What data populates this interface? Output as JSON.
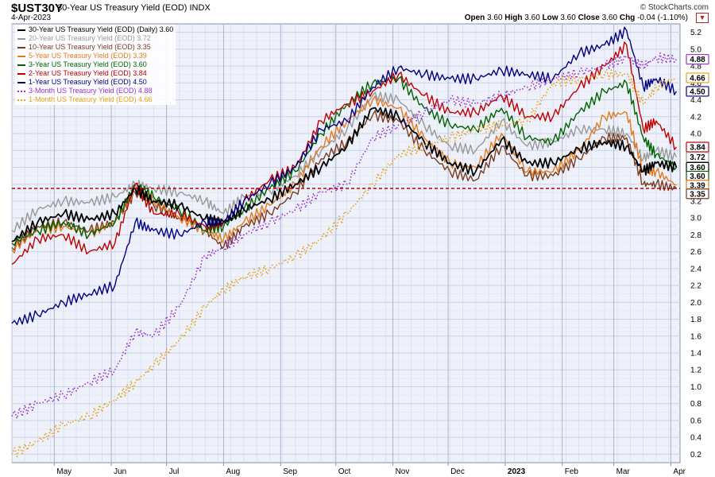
{
  "header": {
    "symbol": "$UST30Y",
    "description": "30-Year US Treasury Yield (EOD)",
    "exchange": "INDX",
    "date": "4-Apr-2023",
    "brand": "© StockCharts.com",
    "open_label": "Open",
    "open": "3.60",
    "high_label": "High",
    "high": "3.60",
    "low_label": "Low",
    "low": "3.60",
    "close_label": "Close",
    "close": "3.60",
    "chg_label": "Chg",
    "chg": "-0.04 (-1.10%)",
    "menu_icon": "chevron-down-icon"
  },
  "chart_data": {
    "type": "line",
    "grid": true,
    "ylim": [
      0.1,
      5.3
    ],
    "y_ticks": [
      0.2,
      0.4,
      0.6,
      0.8,
      1.0,
      1.2,
      1.4,
      1.6,
      1.8,
      2.0,
      2.2,
      2.4,
      2.6,
      2.8,
      3.0,
      3.2,
      3.4,
      3.6,
      3.8,
      4.0,
      4.2,
      4.4,
      4.6,
      4.8,
      5.0,
      5.2
    ],
    "x_range": [
      "2022-04-08",
      "2023-04-06"
    ],
    "x_ticks": [
      {
        "date": "2022-05-01",
        "label": "May"
      },
      {
        "date": "2022-06-01",
        "label": "Jun"
      },
      {
        "date": "2022-07-01",
        "label": "Jul"
      },
      {
        "date": "2022-08-01",
        "label": "Aug"
      },
      {
        "date": "2022-09-01",
        "label": "Sep"
      },
      {
        "date": "2022-10-01",
        "label": "Oct"
      },
      {
        "date": "2022-11-01",
        "label": "Nov"
      },
      {
        "date": "2022-12-01",
        "label": "Dec"
      },
      {
        "date": "2023-01-01",
        "label": "2023"
      },
      {
        "date": "2023-02-01",
        "label": "Feb"
      },
      {
        "date": "2023-03-01",
        "label": "Mar"
      },
      {
        "date": "2023-04-01",
        "label": "Apr"
      }
    ],
    "reference_line": {
      "value": 3.35,
      "color": "#c00000"
    },
    "x": [
      "2022-04-08",
      "2022-04-22",
      "2022-05-06",
      "2022-05-20",
      "2022-06-03",
      "2022-06-14",
      "2022-06-24",
      "2022-07-08",
      "2022-07-22",
      "2022-08-01",
      "2022-08-12",
      "2022-08-26",
      "2022-09-09",
      "2022-09-23",
      "2022-10-07",
      "2022-10-21",
      "2022-11-04",
      "2022-11-18",
      "2022-12-02",
      "2022-12-16",
      "2022-12-30",
      "2023-01-13",
      "2023-01-27",
      "2023-02-10",
      "2023-02-24",
      "2023-03-08",
      "2023-03-17",
      "2023-03-24",
      "2023-04-04"
    ],
    "series": [
      {
        "name": "30-Year US Treasury Yield (EOD) (Daily) 3.60",
        "last": "3.60",
        "color": "#000000",
        "dotted": false,
        "width": 1.8,
        "values": [
          2.72,
          2.95,
          3.05,
          2.98,
          3.05,
          3.35,
          3.2,
          3.15,
          2.99,
          2.95,
          3.1,
          3.22,
          3.4,
          3.6,
          3.85,
          4.3,
          4.2,
          3.9,
          3.65,
          3.55,
          3.93,
          3.65,
          3.65,
          3.82,
          3.9,
          3.85,
          3.55,
          3.65,
          3.6
        ]
      },
      {
        "name": "20-Year US Treasury Yield (EOD) 3.72",
        "last": "3.72",
        "color": "#999999",
        "dotted": false,
        "width": 1.4,
        "values": [
          2.85,
          3.1,
          3.2,
          3.18,
          3.25,
          3.4,
          3.35,
          3.3,
          3.2,
          3.05,
          3.25,
          3.32,
          3.5,
          3.8,
          4.05,
          4.45,
          4.4,
          4.1,
          3.85,
          3.8,
          4.15,
          3.85,
          3.9,
          4.05,
          4.05,
          4.0,
          3.7,
          3.8,
          3.72
        ]
      },
      {
        "name": "10-Year US Treasury Yield (EOD) 3.35",
        "last": "3.35",
        "color": "#7a3b1d",
        "dotted": false,
        "width": 1.4,
        "values": [
          2.65,
          2.9,
          2.95,
          2.85,
          2.95,
          3.3,
          3.15,
          3.0,
          2.85,
          2.65,
          2.9,
          3.05,
          3.3,
          3.7,
          3.9,
          4.22,
          4.15,
          3.8,
          3.55,
          3.45,
          3.85,
          3.5,
          3.5,
          3.7,
          3.95,
          3.95,
          3.4,
          3.4,
          3.35
        ]
      },
      {
        "name": "5-Year US Treasury Yield (EOD) 3.39",
        "last": "3.39",
        "color": "#e57a1d",
        "dotted": false,
        "width": 1.4,
        "values": [
          2.62,
          2.85,
          2.9,
          2.8,
          2.95,
          3.35,
          3.2,
          3.0,
          2.85,
          2.75,
          2.95,
          3.15,
          3.4,
          3.85,
          4.15,
          4.4,
          4.3,
          3.95,
          3.65,
          3.6,
          4.0,
          3.55,
          3.55,
          3.8,
          4.2,
          4.25,
          3.55,
          3.55,
          3.39
        ]
      },
      {
        "name": "3-Year US Treasury Yield (EOD) 3.60",
        "last": "3.60",
        "color": "#006400",
        "dotted": false,
        "width": 1.4,
        "values": [
          2.7,
          2.85,
          2.95,
          2.8,
          2.95,
          3.4,
          3.25,
          3.1,
          2.85,
          2.9,
          3.1,
          3.35,
          3.55,
          4.0,
          4.35,
          4.6,
          4.65,
          4.3,
          4.1,
          4.05,
          4.3,
          3.95,
          3.9,
          4.25,
          4.5,
          4.6,
          3.95,
          3.75,
          3.6
        ]
      },
      {
        "name": "2-Year US Treasury Yield (EOD) 3.84",
        "last": "3.84",
        "color": "#c00000",
        "dotted": false,
        "width": 1.4,
        "values": [
          2.45,
          2.75,
          2.8,
          2.6,
          2.7,
          3.4,
          3.05,
          3.05,
          2.9,
          2.95,
          3.2,
          3.45,
          3.6,
          4.15,
          4.35,
          4.5,
          4.7,
          4.45,
          4.25,
          4.25,
          4.45,
          4.2,
          4.2,
          4.55,
          4.8,
          5.05,
          4.05,
          4.15,
          3.84
        ]
      },
      {
        "name": "1-Year US Treasury Yield (EOD) 4.50",
        "last": "4.50",
        "color": "#000080",
        "dotted": false,
        "width": 1.4,
        "values": [
          1.75,
          1.85,
          2.0,
          2.1,
          2.2,
          2.95,
          2.85,
          2.8,
          2.95,
          2.95,
          3.2,
          3.4,
          3.6,
          4.05,
          4.15,
          4.55,
          4.78,
          4.7,
          4.65,
          4.65,
          4.75,
          4.7,
          4.65,
          4.95,
          5.05,
          5.22,
          4.55,
          4.65,
          4.5
        ]
      },
      {
        "name": "3-Month US Treasury Yield (EOD) 4.88",
        "last": "4.88",
        "color": "#9932cc",
        "dotted": true,
        "width": 1.6,
        "values": [
          0.65,
          0.8,
          0.9,
          1.05,
          1.2,
          1.65,
          1.6,
          1.95,
          2.55,
          2.65,
          2.8,
          2.95,
          3.1,
          3.3,
          3.4,
          3.95,
          4.1,
          4.25,
          4.4,
          4.35,
          4.45,
          4.55,
          4.65,
          4.72,
          4.8,
          4.9,
          4.8,
          4.9,
          4.88
        ]
      },
      {
        "name": "1-Month US Treasury Yield (EOD) 4.66",
        "last": "4.66",
        "color": "#e6a117",
        "dotted": true,
        "width": 1.6,
        "values": [
          0.2,
          0.35,
          0.55,
          0.65,
          0.85,
          1.05,
          1.25,
          1.55,
          1.95,
          2.15,
          2.3,
          2.4,
          2.55,
          2.75,
          3.05,
          3.4,
          3.75,
          3.85,
          3.95,
          4.05,
          4.1,
          4.15,
          4.6,
          4.65,
          4.7,
          4.7,
          4.35,
          4.55,
          4.66
        ]
      }
    ]
  }
}
